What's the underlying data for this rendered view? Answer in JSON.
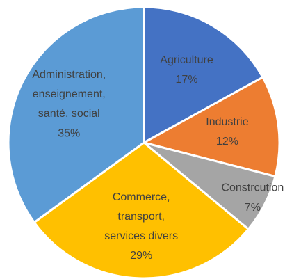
{
  "chart_data": {
    "type": "pie",
    "categories": [
      "Agriculture",
      "Industrie",
      "Constrcution",
      "Commerce,\ntransport,\nservices divers",
      "Administration,\nenseignement,\nsanté, social"
    ],
    "values": [
      17,
      12,
      7,
      29,
      35
    ],
    "value_labels": [
      "17%",
      "12%",
      "7%",
      "29%",
      "35%"
    ],
    "colors": [
      "#4472c4",
      "#ed7d31",
      "#a5a5a5",
      "#ffc000",
      "#5b9bd5"
    ]
  }
}
